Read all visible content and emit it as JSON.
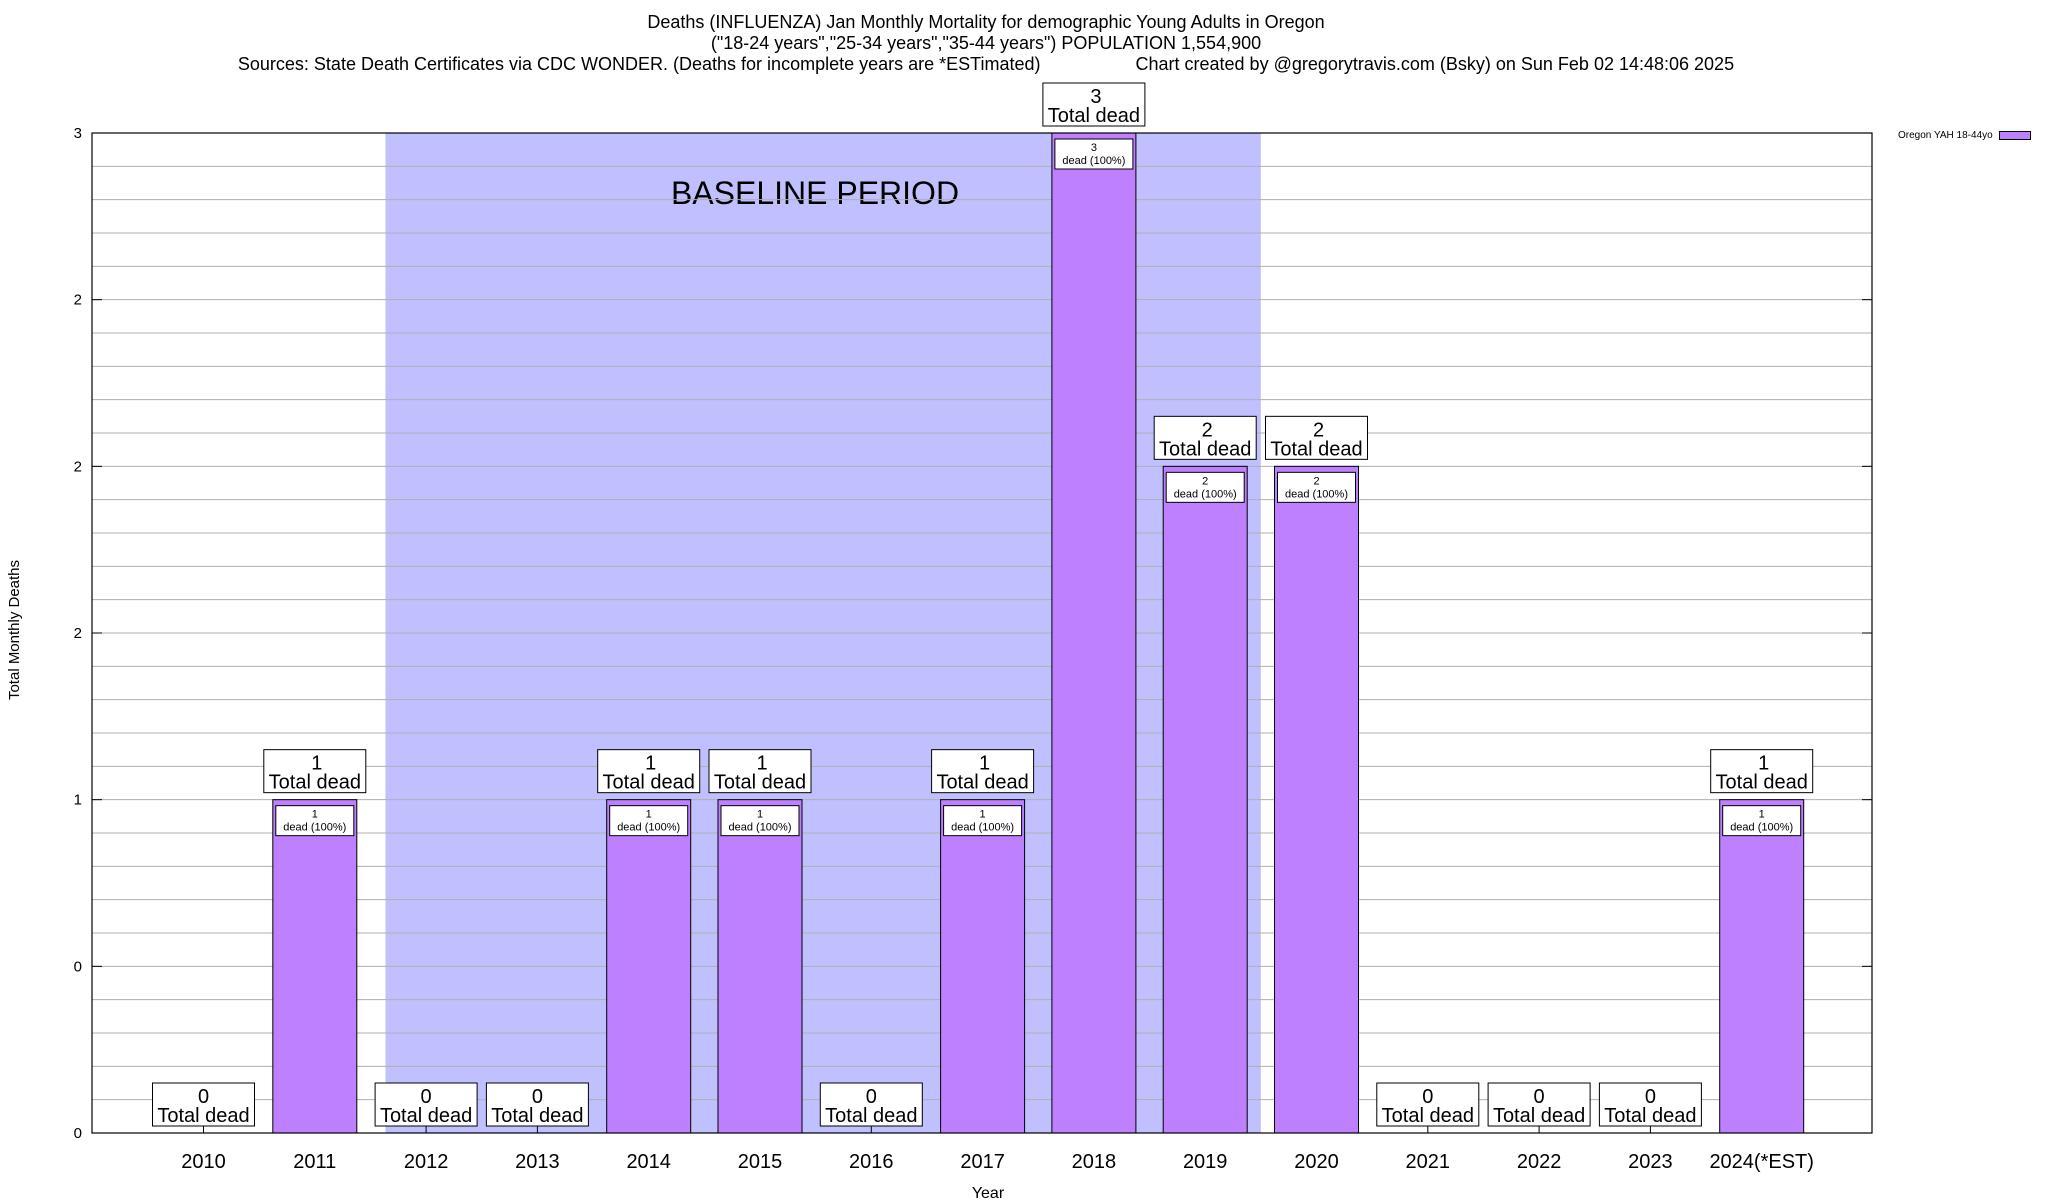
{
  "chart_data": {
    "type": "bar",
    "title": "Deaths (INFLUENZA) Jan Monthly Mortality for demographic Young Adults in Oregon",
    "subtitle": "(\"18-24 years\",\"25-34 years\",\"35-44 years\") POPULATION 1,554,900",
    "source_text": "Sources: State Death Certificates via CDC WONDER. (Deaths for incomplete years are *ESTimated)",
    "credit_text": "Chart created by @gregorytravis.com (Bsky) on Sun Feb 02 14:48:06 2025",
    "xlabel": "Year",
    "ylabel": "Total Monthly Deaths",
    "categories": [
      "2010",
      "2011",
      "2012",
      "2013",
      "2014",
      "2015",
      "2016",
      "2017",
      "2018",
      "2019",
      "2020",
      "2021",
      "2022",
      "2023",
      "2024(*EST)"
    ],
    "series": [
      {
        "name": "Oregon YAH 18-44yo",
        "values": [
          0,
          1,
          0,
          0,
          1,
          1,
          0,
          1,
          3,
          2,
          2,
          0,
          0,
          0,
          1
        ]
      }
    ],
    "ylim": [
      0,
      3
    ],
    "y_tick_labels": [
      "0",
      "0",
      "1",
      "2",
      "2",
      "2",
      "3"
    ],
    "total_label_suffix": "Total dead",
    "inner_label_suffix": "dead (100%)",
    "baseline_label": "BASELINE PERIOD",
    "baseline_range": [
      "2012",
      "2019"
    ],
    "grid": true,
    "legend_position": "top-right",
    "colors": {
      "bar": "#bf80ff",
      "baseline": "#c0c0ff",
      "grid": "#b0b0b0"
    }
  }
}
